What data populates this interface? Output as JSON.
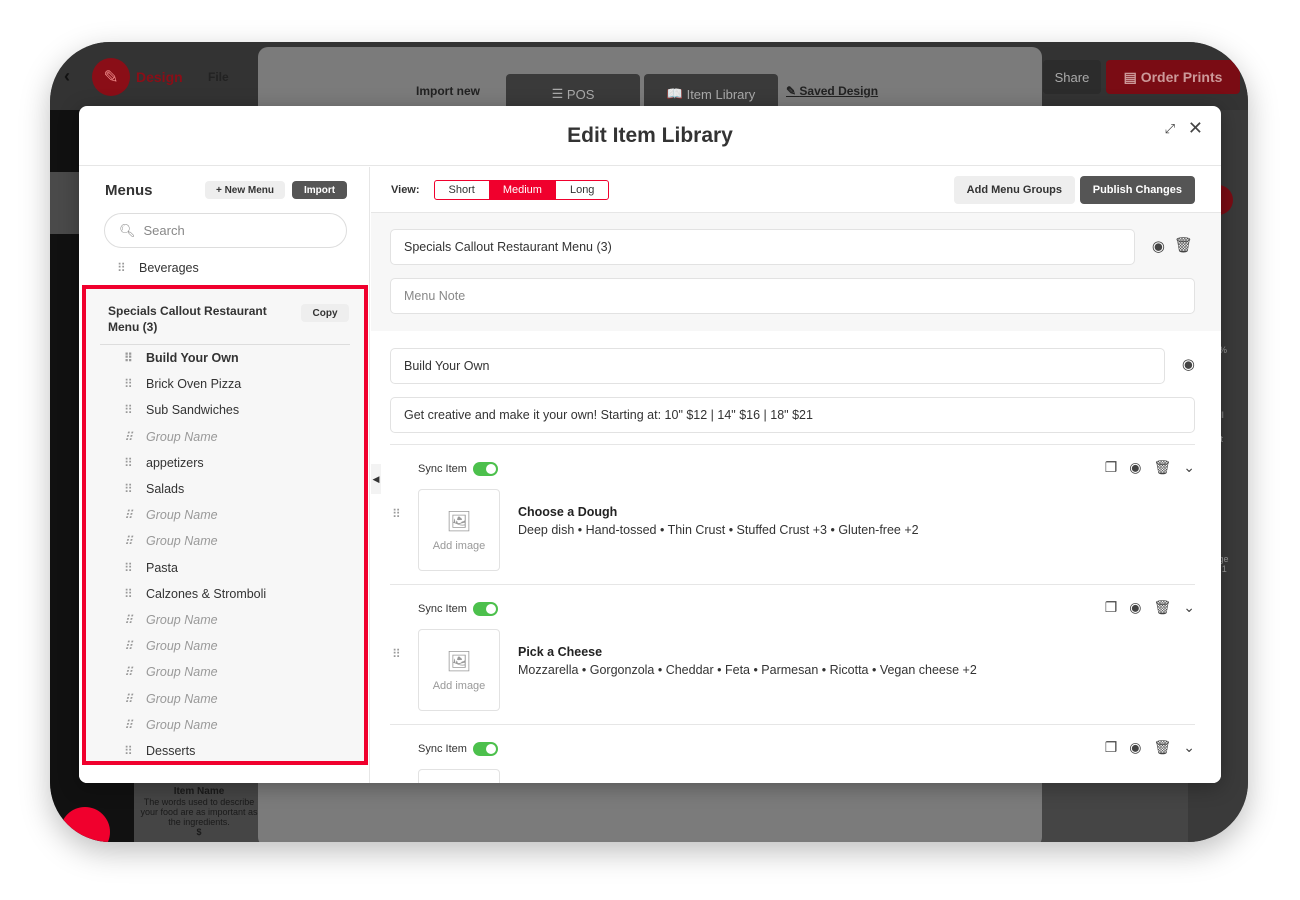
{
  "app": {
    "title": "Design",
    "file_menu": "File",
    "share": "Share",
    "order_prints": "Order Prints",
    "import_new": "Import new",
    "pos": "POS",
    "item_library": "Item Library",
    "saved_design": "Saved Design",
    "rail": [
      "Temp",
      "Te",
      "Gra",
      "QR C",
      "Fav"
    ],
    "zoom": "94%",
    "fill": "Fill",
    "fit": "Fit",
    "page": "Page",
    "page_num": "1 / 1",
    "bg_item_name": "Item Name",
    "bg_item_desc": "The words used to describe your food are as important as the ingredients.",
    "bg_price": "$"
  },
  "modal": {
    "title": "Edit Item Library"
  },
  "sidebar": {
    "title": "Menus",
    "new_menu": "+ New Menu",
    "import": "Import",
    "search_placeholder": "Search",
    "above_item": "Beverages",
    "group_title": "Specials Callout Restaurant Menu (3)",
    "copy": "Copy",
    "items": [
      {
        "label": "Build Your Own",
        "placeholder": false,
        "bold": true
      },
      {
        "label": "Brick Oven Pizza",
        "placeholder": false
      },
      {
        "label": "Sub Sandwiches",
        "placeholder": false
      },
      {
        "label": "Group Name",
        "placeholder": true
      },
      {
        "label": "appetizers",
        "placeholder": false
      },
      {
        "label": "Salads",
        "placeholder": false
      },
      {
        "label": "Group Name",
        "placeholder": true
      },
      {
        "label": "Group Name",
        "placeholder": true
      },
      {
        "label": "Pasta",
        "placeholder": false
      },
      {
        "label": "Calzones & Stromboli",
        "placeholder": false
      },
      {
        "label": "Group Name",
        "placeholder": true
      },
      {
        "label": "Group Name",
        "placeholder": true
      },
      {
        "label": "Group Name",
        "placeholder": true
      },
      {
        "label": "Group Name",
        "placeholder": true
      },
      {
        "label": "Group Name",
        "placeholder": true
      },
      {
        "label": "Desserts",
        "placeholder": false
      }
    ]
  },
  "main": {
    "view_label": "View:",
    "views": [
      "Short",
      "Medium",
      "Long"
    ],
    "active_view": "Medium",
    "add_groups": "Add Menu Groups",
    "publish": "Publish Changes",
    "menu_name": "Specials Callout Restaurant Menu (3)",
    "menu_note_placeholder": "Menu Note",
    "group_name": "Build Your Own",
    "group_desc": "Get creative and make it your own! Starting at: 10\" $12 | 14\" $16 | 18\" $21",
    "sync_label": "Sync Item",
    "add_image": "Add image",
    "items": [
      {
        "name": "Choose a Dough",
        "desc": "Deep dish • Hand-tossed • Thin Crust • Stuffed Crust +3 • Gluten-free +2",
        "sync": true
      },
      {
        "name": "Pick a Cheese",
        "desc": "Mozzarella • Gorgonzola • Cheddar • Feta • Parmesan • Ricotta • Vegan cheese +2",
        "sync": true
      },
      {
        "name": "",
        "desc": "",
        "sync": true
      }
    ]
  },
  "colors": {
    "accent": "#f0002d",
    "toggle_on": "#4cc04c"
  }
}
